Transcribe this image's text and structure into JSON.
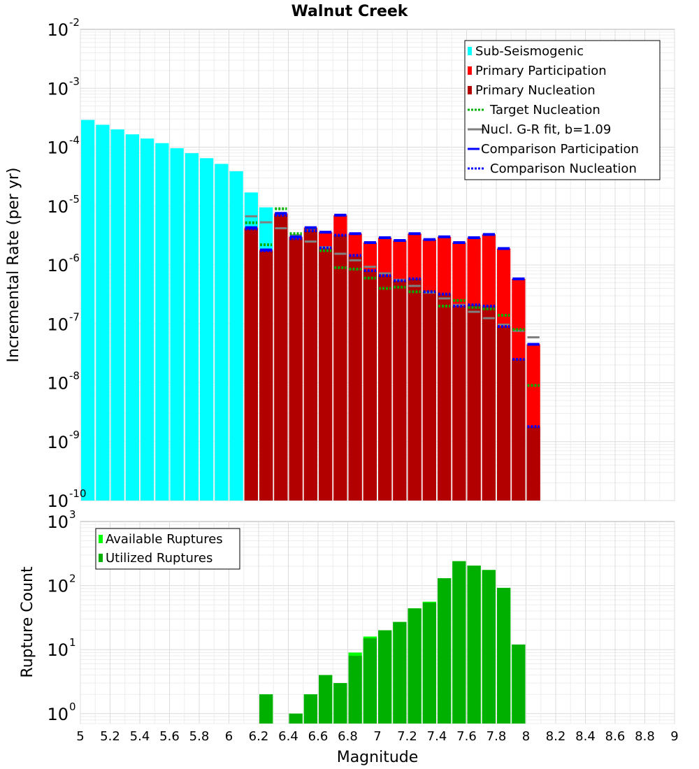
{
  "chart_data": [
    {
      "id": "rates",
      "type": "bar",
      "title": "Walnut Creek",
      "xlabel": "Magnitude",
      "ylabel": "Incremental Rate (per yr)",
      "yscale": "log",
      "ylim": [
        1e-10,
        0.01
      ],
      "xlim": [
        5,
        9
      ],
      "ytick_exponents": [
        "-10",
        "-9",
        "-8",
        "-7",
        "-6",
        "-5",
        "-4",
        "-3",
        "-2"
      ],
      "ytick_base": "10",
      "legend_position": "top-right",
      "legend": [
        {
          "label": "Sub-Seismogenic",
          "style": "bar",
          "color": "#00ffff"
        },
        {
          "label": "Primary Participation",
          "style": "bar",
          "color": "#ff0000"
        },
        {
          "label": "Primary Nucleation",
          "style": "bar",
          "color": "#b20000"
        },
        {
          "label": "Target Nucleation",
          "style": "dotted",
          "color": "#00b000"
        },
        {
          "label": "Nucl. G-R fit, b=1.09",
          "style": "solid",
          "color": "#808080"
        },
        {
          "label": "Comparison Participation",
          "style": "solid",
          "color": "#0000ff"
        },
        {
          "label": "Comparison Nucleation",
          "style": "dotted",
          "color": "#0000ff"
        }
      ],
      "bin_width": 0.1,
      "x": [
        5.05,
        5.15,
        5.25,
        5.35,
        5.45,
        5.55,
        5.65,
        5.75,
        5.85,
        5.95,
        6.05,
        6.15,
        6.25,
        6.35,
        6.45,
        6.55,
        6.65,
        6.75,
        6.85,
        6.95,
        7.05,
        7.15,
        7.25,
        7.35,
        7.45,
        7.55,
        7.65,
        7.75,
        7.85,
        7.95,
        8.05
      ],
      "series": [
        {
          "name": "Sub-Seismogenic",
          "color": "#00ffff",
          "values": [
            0.00029,
            0.00024,
            0.0002,
            0.000165,
            0.00014,
            0.000117,
            9.6e-05,
            7.9e-05,
            6.5e-05,
            5.2e-05,
            3.9e-05,
            1.7e-05,
            9.5e-06,
            null,
            null,
            null,
            null,
            null,
            null,
            null,
            null,
            null,
            null,
            null,
            null,
            null,
            null,
            null,
            null,
            null,
            null
          ]
        },
        {
          "name": "Primary Participation",
          "color": "#ff0000",
          "values": [
            null,
            null,
            null,
            null,
            null,
            null,
            null,
            null,
            null,
            null,
            null,
            4.3e-06,
            1.8e-06,
            7.5e-06,
            3e-06,
            4.3e-06,
            3.6e-06,
            7e-06,
            3.4e-06,
            2.4e-06,
            2.9e-06,
            2.6e-06,
            3.4e-06,
            2.7e-06,
            3e-06,
            2.4e-06,
            2.9e-06,
            3.3e-06,
            1.9e-06,
            5.8e-07,
            4.5e-08
          ]
        },
        {
          "name": "Primary Nucleation",
          "color": "#b20000",
          "values": [
            null,
            null,
            null,
            null,
            null,
            null,
            null,
            null,
            null,
            null,
            null,
            4.1e-06,
            1.7e-06,
            7e-06,
            2.8e-06,
            3.8e-06,
            1.9e-06,
            3.2e-06,
            1.4e-06,
            8e-07,
            6.6e-07,
            5.4e-07,
            5.8e-07,
            3.5e-07,
            3.2e-07,
            2e-07,
            2.1e-07,
            2e-07,
            9e-08,
            2.5e-08,
            1.8e-09
          ]
        },
        {
          "name": "Target Nucleation",
          "color": "#00b000",
          "values": [
            null,
            null,
            null,
            null,
            null,
            null,
            null,
            null,
            null,
            null,
            null,
            5.2e-06,
            2.2e-06,
            9e-06,
            3.4e-06,
            3.9e-06,
            1.75e-06,
            9e-07,
            8.5e-07,
            6e-07,
            4e-07,
            4.2e-07,
            3.5e-07,
            3.5e-07,
            2e-07,
            2.5e-07,
            1.9e-07,
            1.8e-07,
            1.4e-07,
            8e-08,
            9e-09
          ]
        },
        {
          "name": "Nucl. G-R fit, b=1.09",
          "color": "#808080",
          "values": [
            null,
            null,
            null,
            null,
            null,
            null,
            null,
            null,
            null,
            null,
            null,
            6.7e-06,
            5.3e-06,
            4.2e-06,
            3.2e-06,
            2.5e-06,
            2e-06,
            1.55e-06,
            1.2e-06,
            9.3e-07,
            7.2e-07,
            5.6e-07,
            4.4e-07,
            3.4e-07,
            2.7e-07,
            2.1e-07,
            1.6e-07,
            1.25e-07,
            9.7e-08,
            7.6e-08,
            5.9e-08
          ]
        },
        {
          "name": "Comparison Participation",
          "color": "#0000ff",
          "values": [
            null,
            null,
            null,
            null,
            null,
            null,
            null,
            null,
            null,
            null,
            null,
            4.3e-06,
            1.8e-06,
            7.5e-06,
            3e-06,
            4.3e-06,
            3.6e-06,
            7e-06,
            3.4e-06,
            2.4e-06,
            2.9e-06,
            2.6e-06,
            3.4e-06,
            2.7e-06,
            3e-06,
            2.4e-06,
            2.9e-06,
            3.3e-06,
            1.9e-06,
            5.8e-07,
            4.5e-08
          ]
        },
        {
          "name": "Comparison Nucleation",
          "color": "#0000ff",
          "values": [
            null,
            null,
            null,
            null,
            null,
            null,
            null,
            null,
            null,
            null,
            null,
            4.1e-06,
            1.75e-06,
            7e-06,
            2.8e-06,
            3.8e-06,
            1.95e-06,
            3.2e-06,
            1.45e-06,
            8e-07,
            6.6e-07,
            5.4e-07,
            5.8e-07,
            3.5e-07,
            3.2e-07,
            2e-07,
            2.1e-07,
            2e-07,
            9e-08,
            2.5e-08,
            1.8e-09
          ]
        }
      ]
    },
    {
      "id": "counts",
      "type": "bar",
      "xlabel": "Magnitude",
      "ylabel": "Rupture Count",
      "yscale": "log",
      "ylim": [
        0.7,
        1000
      ],
      "xlim": [
        5,
        9
      ],
      "ytick_exponents": [
        "0",
        "1",
        "2",
        "3"
      ],
      "ytick_base": "10",
      "xticks": [
        "5",
        "5.2",
        "5.4",
        "5.6",
        "5.8",
        "6",
        "6.2",
        "6.4",
        "6.6",
        "6.8",
        "7",
        "7.2",
        "7.4",
        "7.6",
        "7.8",
        "8",
        "8.2",
        "8.4",
        "8.6",
        "8.8",
        "9"
      ],
      "legend_position": "top-left",
      "legend": [
        {
          "label": "Available Ruptures",
          "style": "bar",
          "color": "#00ff00"
        },
        {
          "label": "Utilized Ruptures",
          "style": "bar",
          "color": "#00b000"
        }
      ],
      "bin_width": 0.1,
      "x": [
        6.25,
        6.35,
        6.45,
        6.55,
        6.65,
        6.75,
        6.85,
        6.95,
        7.05,
        7.15,
        7.25,
        7.35,
        7.45,
        7.55,
        7.65,
        7.75,
        7.85,
        7.95
      ],
      "series": [
        {
          "name": "Available Ruptures",
          "color": "#00ff00",
          "values": [
            2,
            null,
            1,
            2,
            4,
            3,
            9,
            16,
            20,
            27,
            44,
            56,
            130,
            240,
            205,
            175,
            92,
            12
          ]
        },
        {
          "name": "Utilized Ruptures",
          "color": "#00b000",
          "values": [
            2,
            null,
            1,
            2,
            4,
            3,
            8,
            15,
            20,
            27,
            44,
            54,
            130,
            240,
            205,
            175,
            92,
            12
          ]
        }
      ]
    }
  ]
}
